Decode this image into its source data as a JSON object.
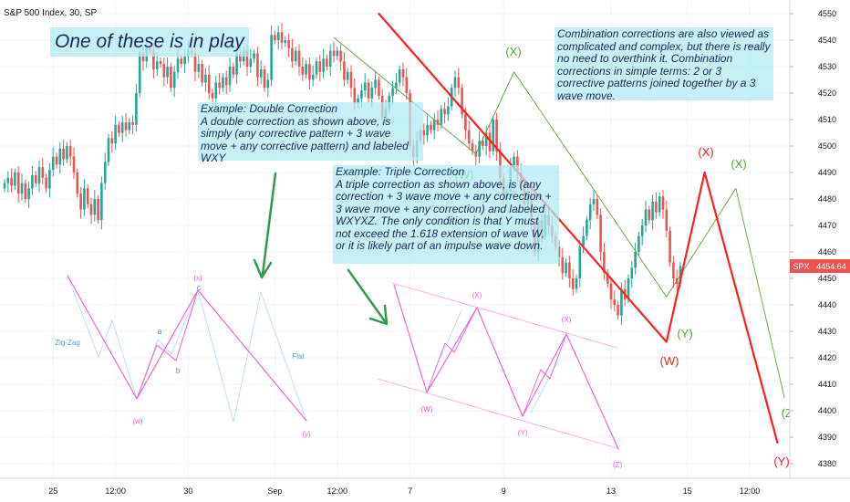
{
  "chart_data": {
    "type": "candlestick",
    "title": "S&P 500 Index, 30, SP",
    "symbol_badge": "SPX",
    "last_price": "4454.64",
    "ylim": [
      4375,
      4555
    ],
    "y_ticks": [
      4550,
      4540,
      4530,
      4520,
      4510,
      4500,
      4490,
      4480,
      4470,
      4460,
      4450,
      4440,
      4430,
      4420,
      4410,
      4400,
      4390,
      4380
    ],
    "x_ticks": [
      {
        "label": "25",
        "bar": 14
      },
      {
        "label": "12:00",
        "bar": 32
      },
      {
        "label": "30",
        "bar": 53
      },
      {
        "label": "Sep",
        "bar": 78
      },
      {
        "label": "12:00",
        "bar": 96
      },
      {
        "label": "7",
        "bar": 117
      },
      {
        "label": "9",
        "bar": 144
      },
      {
        "label": "13",
        "bar": 175
      },
      {
        "label": "15",
        "bar": 197
      },
      {
        "label": "12:00",
        "bar": 215
      }
    ],
    "closes": [
      4486,
      4488,
      4485,
      4490,
      4482,
      4486,
      4480,
      4484,
      4489,
      4486,
      4492,
      4488,
      4484,
      4491,
      4496,
      4493,
      4499,
      4495,
      4500,
      4496,
      4490,
      4482,
      4476,
      4484,
      4478,
      4474,
      4480,
      4472,
      4486,
      4494,
      4503,
      4501,
      4508,
      4505,
      4509,
      4506,
      4509,
      4508,
      4520,
      4535,
      4532,
      4537,
      4536,
      4529,
      4532,
      4531,
      4526,
      4530,
      4522,
      4528,
      4533,
      4531,
      4534,
      4536,
      4535,
      4528,
      4531,
      4524,
      4527,
      4520,
      4518,
      4524,
      4522,
      4526,
      4523,
      4530,
      4527,
      4535,
      4532,
      4536,
      4530,
      4533,
      4535,
      4526,
      4529,
      4522,
      4525,
      4542,
      4540,
      4543,
      4539,
      4540,
      4537,
      4532,
      4536,
      4530,
      4527,
      4531,
      4525,
      4527,
      4532,
      4528,
      4533,
      4530,
      4536,
      4534,
      4536,
      4532,
      4525,
      4528,
      4522,
      4516,
      4518,
      4521,
      4524,
      4518,
      4522,
      4525,
      4519,
      4510,
      4514,
      4519,
      4522,
      4524,
      4529,
      4526,
      4520,
      4500,
      4496,
      4502,
      4506,
      4504,
      4508,
      4506,
      4510,
      4508,
      4514,
      4512,
      4515,
      4522,
      4526,
      4522,
      4512,
      4506,
      4501,
      4498,
      4496,
      4502,
      4500,
      4505,
      4498,
      4510,
      4498,
      4488,
      4480,
      4483,
      4492,
      4496,
      4490,
      4486,
      4478,
      4482,
      4470,
      4460,
      4472,
      4466,
      4474,
      4470,
      4466,
      4462,
      4458,
      4452,
      4456,
      4450,
      4446,
      4450,
      4462,
      4466,
      4472,
      4478,
      4480,
      4474,
      4460,
      4452,
      4448,
      4442,
      4440,
      4436,
      4446,
      4442,
      4450,
      4454,
      4460,
      4466,
      4470,
      4476,
      4472,
      4479,
      4475,
      4481,
      4476,
      4468,
      4456,
      4450,
      4448,
      4454.64
    ],
    "annotations": {
      "zigzag_label": "Zig-Zag",
      "flat_label": "Flat",
      "wave_labels": {
        "w_small": "(w)",
        "x_small": "(x)",
        "y_small": "(y)",
        "a": "a",
        "b": "b",
        "c": "c",
        "W_pink": "(W)",
        "X1_pink": "(X)",
        "Y_pink": "(Y)",
        "X2_pink": "(X)",
        "Z_pink": "(Z)",
        "X_green_top": "(X)",
        "W_green": "(W)",
        "Y_green": "(Y)",
        "X_green_right": "(X)",
        "Z_green": "(Z)",
        "W_red": "(W)",
        "X_red": "(X)",
        "Y_red": "(Y)"
      }
    },
    "colors": {
      "up": "#26a69a",
      "down": "#ef5350",
      "red_wave": "#ff1f1f",
      "green_wave": "#5aa83a",
      "pink_wave": "#ec5fd2",
      "faint_wave": "#c6dcf2",
      "arrow": "#2e9b4e",
      "note_bg": "#b2ebf2"
    }
  },
  "notes": {
    "in_play": "One of these is in play",
    "double_head": "Example: Double Correction",
    "double_body": "A double correction as shown above, is simply (any corrective pattern + 3 wave move + any corrective pattern) and labeled WXY",
    "triple_head": "Example: Triple Correction",
    "triple_body": "A triple correction as shown above, is (any correction + 3 wave move + any correction + 3 wave move + any correction) and labeled WXYXZ. The only condition is that Y must not exceed the 1.618 extension of wave W, or it is likely part of an impulse wave down.",
    "combo": "Combination corrections are also viewed as complicated and complex, but there is really no need to overthink it. Combination corrections in simple terms: 2 or 3 corrective patterns joined together by a 3 wave move."
  }
}
